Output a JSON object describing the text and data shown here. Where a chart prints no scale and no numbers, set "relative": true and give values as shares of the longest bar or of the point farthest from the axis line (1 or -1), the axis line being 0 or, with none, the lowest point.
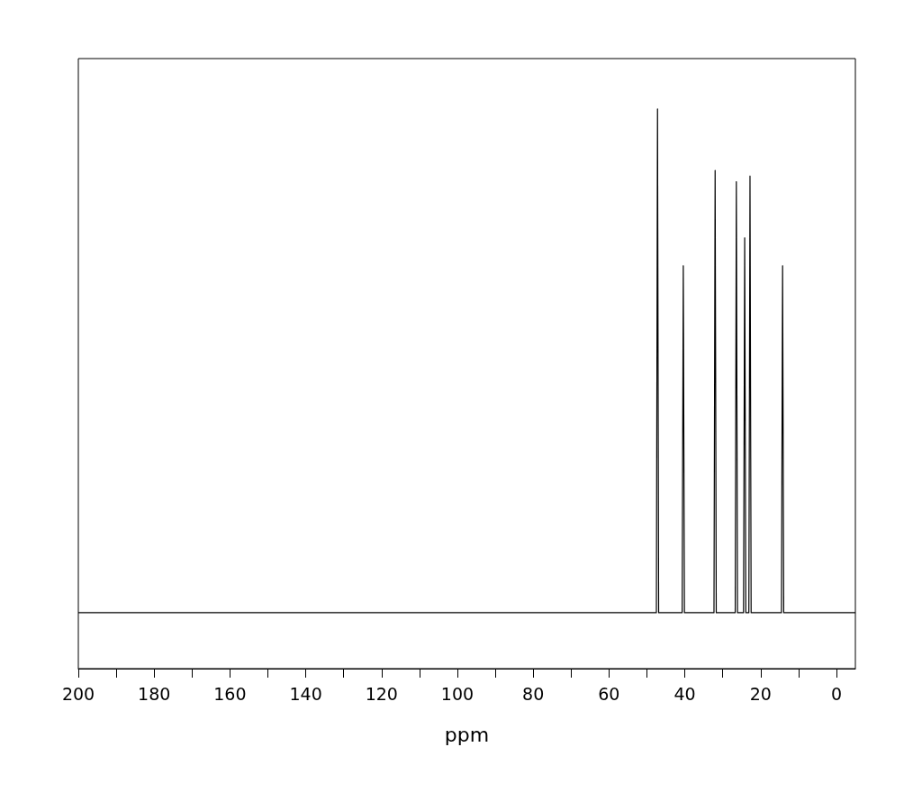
{
  "chart_data": {
    "type": "line",
    "relative": true,
    "xlabel": "ppm",
    "xlim": [
      200,
      -5
    ],
    "xticks": [
      200,
      {
        "value": 190,
        "label": null
      },
      180,
      {
        "value": 170,
        "label": null
      },
      160,
      {
        "value": 150,
        "label": null
      },
      140,
      {
        "value": 130,
        "label": null
      },
      120,
      {
        "value": 110,
        "label": null
      },
      100,
      {
        "value": 90,
        "label": null
      },
      80,
      {
        "value": 70,
        "label": null
      },
      60,
      {
        "value": 50,
        "label": null
      },
      40,
      {
        "value": 30,
        "label": null
      },
      20,
      {
        "value": 10,
        "label": null
      },
      0
    ],
    "series": [
      {
        "color": "#000000",
        "x": [
          200,
          47.5,
          47.2,
          46.9,
          40.7,
          40.4,
          40.1,
          32.3,
          32.0,
          31.7,
          26.7,
          26.4,
          26.1,
          24.5,
          24.2,
          23.9,
          23.1,
          22.8,
          22.5,
          14.5,
          14.2,
          13.9,
          -5
        ],
        "values": [
          0.1,
          0.1,
          1.0,
          0.1,
          0.1,
          0.72,
          0.1,
          0.1,
          0.89,
          0.1,
          0.1,
          0.87,
          0.1,
          0.1,
          0.77,
          0.1,
          0.1,
          0.88,
          0.1,
          0.1,
          0.72,
          0.1,
          0.1
        ]
      }
    ],
    "marker": "none",
    "line_style": "solid"
  }
}
